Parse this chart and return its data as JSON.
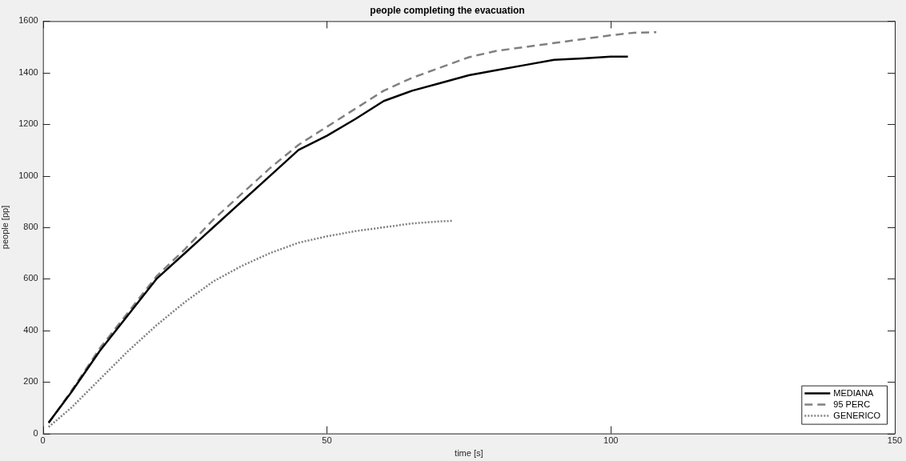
{
  "chart_data": {
    "type": "line",
    "title": "people completing the evacuation",
    "xlabel": "time [s]",
    "ylabel": "people [pp]",
    "xlim": [
      0,
      150
    ],
    "xticks": [
      0,
      50,
      100,
      150
    ],
    "ylim": [
      0,
      1600
    ],
    "yticks": [
      0,
      200,
      400,
      600,
      800,
      1000,
      1200,
      1400,
      1600
    ],
    "legend": "bottom right",
    "marker": "none",
    "series": [
      {
        "name": "MEDIANA",
        "color": "#000000",
        "line_style": "solid",
        "x": [
          1,
          5,
          10,
          15,
          20,
          25,
          30,
          35,
          40,
          45,
          50,
          55,
          60,
          65,
          70,
          75,
          80,
          85,
          90,
          95,
          100,
          103
        ],
        "values": [
          42,
          160,
          320,
          460,
          600,
          700,
          800,
          900,
          1000,
          1100,
          1155,
          1220,
          1290,
          1330,
          1360,
          1390,
          1410,
          1430,
          1450,
          1455,
          1462,
          1462
        ]
      },
      {
        "name": "95 PERC",
        "color": "#808080",
        "line_style": "dashed",
        "x": [
          1,
          5,
          10,
          15,
          20,
          25,
          30,
          35,
          40,
          45,
          50,
          55,
          60,
          65,
          70,
          75,
          80,
          85,
          90,
          95,
          100,
          104,
          108
        ],
        "values": [
          40,
          165,
          330,
          470,
          610,
          715,
          830,
          930,
          1030,
          1120,
          1190,
          1260,
          1330,
          1380,
          1420,
          1460,
          1485,
          1500,
          1515,
          1530,
          1545,
          1555,
          1557
        ]
      },
      {
        "name": "GENERICO",
        "color": "#808080",
        "line_style": "dotted",
        "x": [
          1,
          5,
          10,
          15,
          20,
          25,
          30,
          35,
          40,
          45,
          50,
          55,
          60,
          65,
          70,
          72
        ],
        "values": [
          25,
          100,
          210,
          320,
          420,
          510,
          590,
          650,
          700,
          740,
          765,
          785,
          800,
          815,
          823,
          825
        ]
      }
    ]
  }
}
